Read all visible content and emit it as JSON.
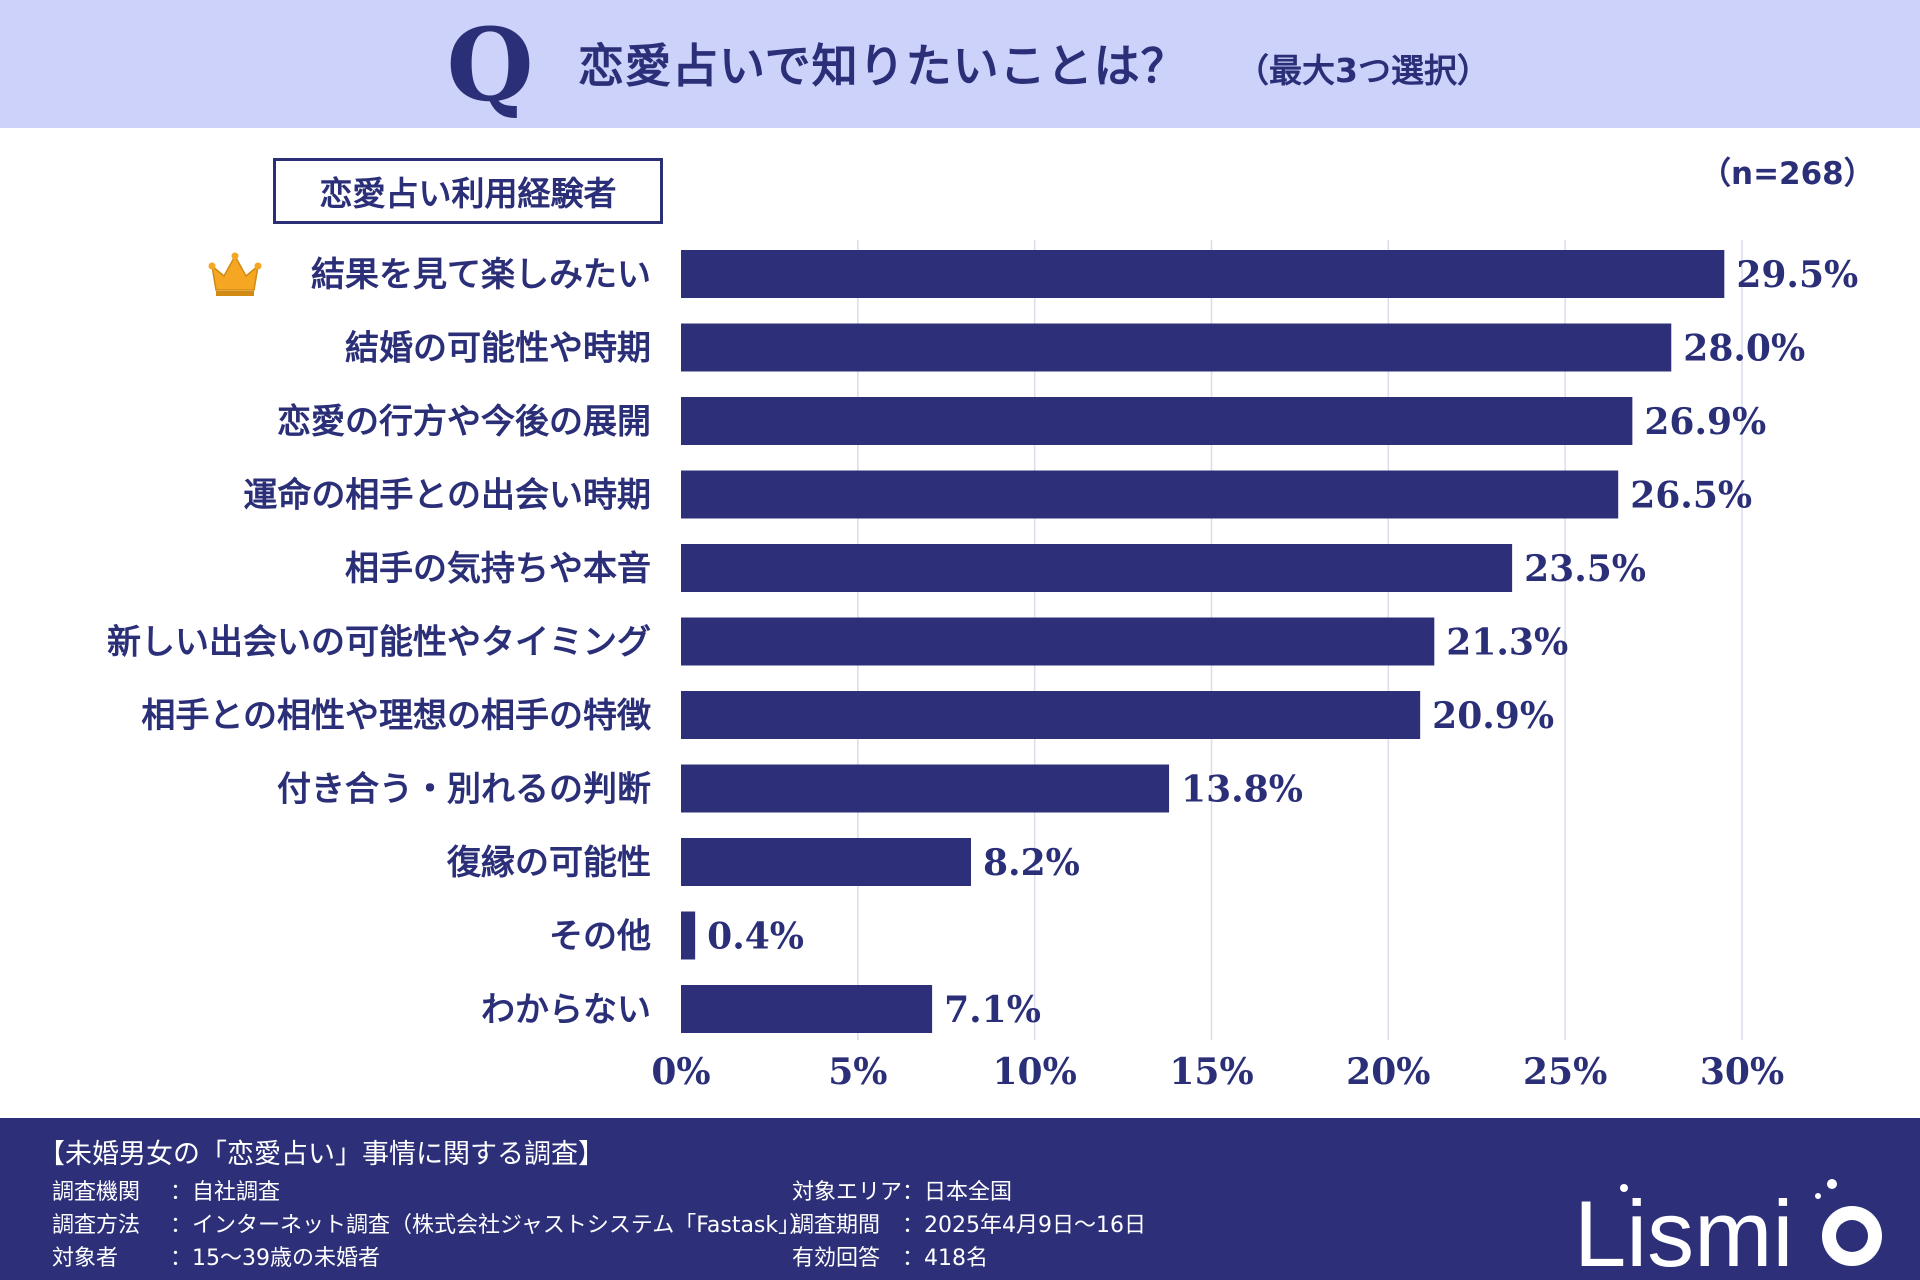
{
  "header": {
    "q_letter": "Q",
    "title": "恋愛占いで知りたいことは？",
    "note": "（最大3つ選択）"
  },
  "segment_label": "恋愛占い利用経験者",
  "sample_size": "（n=268）",
  "colors": {
    "bar": "#2d3079",
    "header_bg": "#cdd2fb",
    "footer_bg": "#2d3079",
    "crown": "#f5a623"
  },
  "chart_data": {
    "type": "bar",
    "orientation": "horizontal",
    "title": "恋愛占いで知りたいことは？",
    "categories": [
      "結果を見て楽しみたい",
      "結婚の可能性や時期",
      "恋愛の行方や今後の展開",
      "運命の相手との出会い時期",
      "相手の気持ちや本音",
      "新しい出会いの可能性やタイミング",
      "相手との相性や理想の相手の特徴",
      "付き合う・別れるの判断",
      "復縁の可能性",
      "その他",
      "わからない"
    ],
    "values": [
      29.5,
      28.0,
      26.9,
      26.5,
      23.5,
      21.3,
      20.9,
      13.8,
      8.2,
      0.4,
      7.1
    ],
    "value_labels": [
      "29.5%",
      "28.0%",
      "26.9%",
      "26.5%",
      "23.5%",
      "21.3%",
      "20.9%",
      "13.8%",
      "8.2%",
      "0.4%",
      "7.1%"
    ],
    "xlim": [
      0,
      30
    ],
    "ticks": [
      0,
      5,
      10,
      15,
      20,
      25,
      30
    ],
    "tick_labels": [
      "0%",
      "5%",
      "10%",
      "15%",
      "20%",
      "25%",
      "30%"
    ],
    "grid": true,
    "top_item_icon": "crown-icon"
  },
  "footer": {
    "title": "【未婚男女の「恋愛占い」事情に関する調査】",
    "left": [
      {
        "key": "調査機関",
        "value": "：自社調査"
      },
      {
        "key": "調査方法",
        "value": "：インターネット調査（株式会社ジャストシステム「Fastask」）"
      },
      {
        "key": "対象者",
        "value": "：15〜39歳の未婚者"
      }
    ],
    "right": [
      {
        "key": "対象エリア",
        "value": "：日本全国"
      },
      {
        "key": "調査期間",
        "value": "：2025年4月9日〜16日"
      },
      {
        "key": "有効回答",
        "value": "：418名"
      }
    ],
    "brand": "Lismi"
  }
}
